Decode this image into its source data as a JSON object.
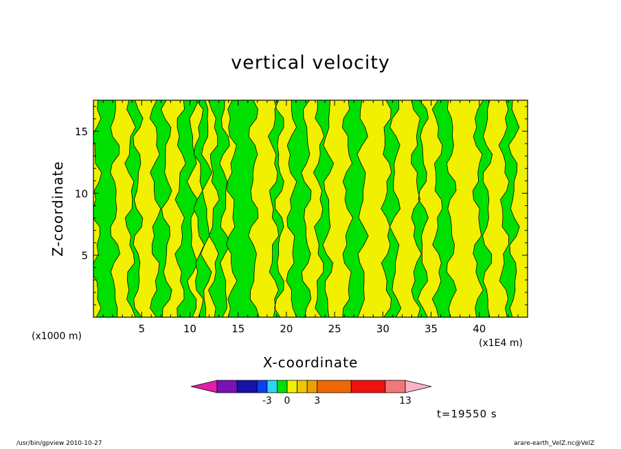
{
  "chart_data": {
    "type": "heatmap",
    "title": "vertical velocity",
    "xlabel": "X-coordinate",
    "ylabel": "Z-coordinate",
    "x_units": "(x1E4 m)",
    "y_units": "(x1000 m)",
    "xlim": [
      0,
      45
    ],
    "ylim": [
      0,
      17.5
    ],
    "x_ticks": [
      5,
      10,
      15,
      20,
      25,
      30,
      35,
      40
    ],
    "y_ticks": [
      5,
      10,
      15
    ],
    "time_label": "t=19550 s",
    "colorbar": {
      "colors": [
        "#e020a8",
        "#7a10b8",
        "#1414a8",
        "#0a40f0",
        "#28d8f0",
        "#00e000",
        "#f0f000",
        "#f0c800",
        "#f0a000",
        "#f06800",
        "#f01010",
        "#f07878",
        "#f8b4c4"
      ],
      "tick_labels": [
        "-3",
        "0",
        "3",
        "13"
      ],
      "tick_values": [
        -3,
        0,
        3,
        13
      ]
    },
    "series": [
      {
        "value_sign": "negative",
        "color": "#00e000",
        "bands": [
          [
            0.3,
            2.2
          ],
          [
            3.8,
            4.6
          ],
          [
            6.4,
            7.6
          ],
          [
            9.0,
            10.3
          ],
          [
            10.9,
            11.7
          ],
          [
            12.5,
            13.6
          ],
          [
            14.3,
            16.6
          ],
          [
            18.7,
            19.3
          ],
          [
            20.5,
            22.1
          ],
          [
            23.4,
            24.3
          ],
          [
            26.3,
            27.9
          ],
          [
            30.4,
            31.3
          ],
          [
            33.4,
            34.2
          ],
          [
            35.7,
            37.1
          ],
          [
            39.8,
            40.8
          ],
          [
            42.6,
            43.6
          ]
        ]
      },
      {
        "value_sign": "positive",
        "color": "#f0f000"
      }
    ]
  },
  "footer": {
    "left": "/usr/bin/gpview   2010-10-27",
    "right": "arare-earth_VelZ.nc@VelZ"
  }
}
